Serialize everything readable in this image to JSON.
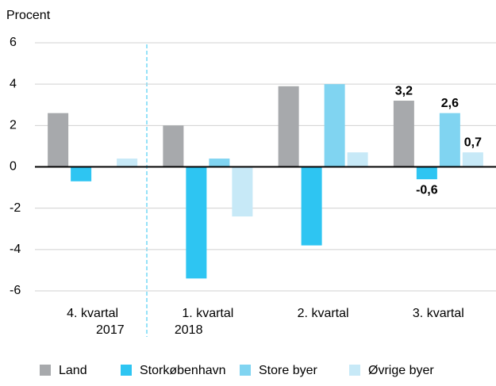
{
  "chart_data": {
    "type": "bar",
    "y_axis_label": "Procent",
    "categories": [
      "4. kvartal",
      "1. kvartal",
      "2. kvartal",
      "3. kvartal"
    ],
    "category_sublabels": [
      "2017",
      "2018",
      null,
      null
    ],
    "series": [
      {
        "name": "Land",
        "color": "#a7a9ac",
        "values": [
          2.6,
          2.0,
          3.9,
          3.2
        ],
        "value_labels": [
          null,
          null,
          null,
          "3,2"
        ]
      },
      {
        "name": "Storkøbenhavn",
        "color": "#2ec5f2",
        "values": [
          -0.7,
          -5.4,
          -3.8,
          -0.6
        ],
        "value_labels": [
          null,
          null,
          null,
          "-0,6"
        ]
      },
      {
        "name": "Store byer",
        "color": "#80d4f1",
        "values": [
          0,
          0.4,
          4.0,
          2.6
        ],
        "value_labels": [
          null,
          null,
          null,
          "2,6"
        ]
      },
      {
        "name": "Øvrige byer",
        "color": "#c7e9f7",
        "values": [
          0.4,
          -2.4,
          0.7,
          0.7
        ],
        "value_labels": [
          null,
          null,
          null,
          "0,7"
        ]
      }
    ],
    "ylim": [
      -6,
      6
    ],
    "yticks": [
      -6,
      -4,
      -2,
      0,
      2,
      4,
      6
    ],
    "grid": true,
    "legend": "bottom"
  }
}
